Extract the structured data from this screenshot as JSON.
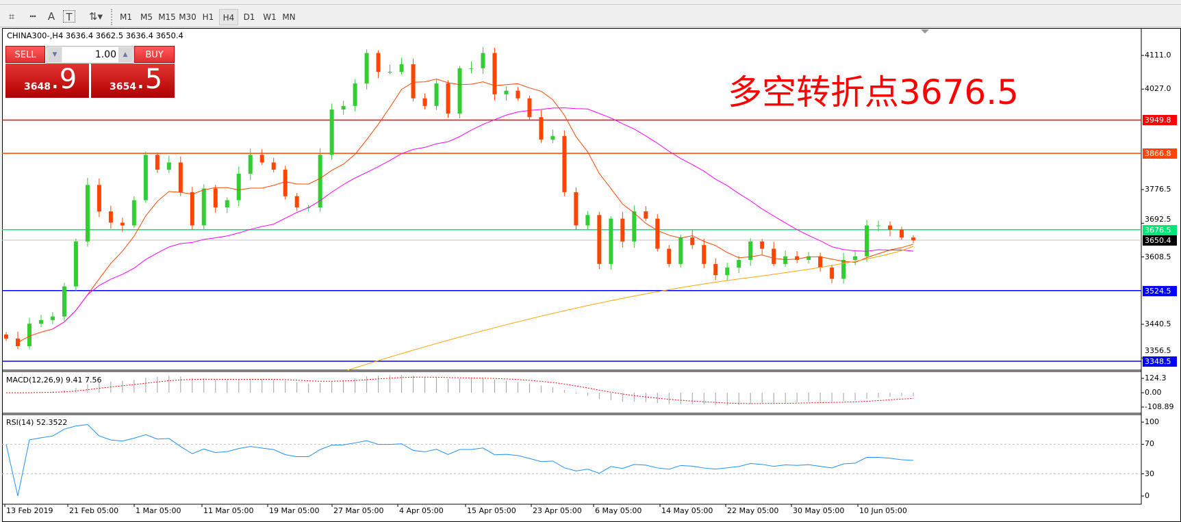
{
  "toolbar": {
    "icons": [
      "indicators-icon",
      "periodicity-separators-icon",
      "text-icon",
      "text-label-icon",
      "arrows-icon"
    ],
    "text_icon_label": "A",
    "label_icon_label": "T",
    "timeframes": [
      "M1",
      "M5",
      "M15",
      "M30",
      "H1",
      "H4",
      "D1",
      "W1",
      "MN"
    ],
    "active_timeframe": "H4"
  },
  "chart": {
    "info": "CHINA300-,H4  3636.4 3662.5 3636.4 3650.4",
    "annotation": "多空转折点3676.5",
    "trade": {
      "sell_label": "SELL",
      "buy_label": "BUY",
      "lot": "1.00",
      "sell_main": "3648",
      "sell_frac": ".9",
      "buy_main": "3654",
      "buy_frac": ".5"
    },
    "price_axis": [
      "4111.0",
      "4027.0",
      "3776.5",
      "3692.5",
      "3608.5",
      "3440.5",
      "3356.5"
    ],
    "hlines": [
      {
        "price": 3949.8,
        "label": "3949.8",
        "color": "#ff0000"
      },
      {
        "price": 3866.8,
        "label": "3866.8",
        "color": "#ff4500"
      },
      {
        "price": 3676.5,
        "label": "3676.5",
        "color": "#00e676"
      },
      {
        "price": 3650.4,
        "label": "3650.4",
        "color": "#c0c0c0",
        "label_bg": "#000000"
      },
      {
        "price": 3524.5,
        "label": "3524.5",
        "color": "#0000ff"
      },
      {
        "price": 3348.5,
        "label": "3348.5",
        "color": "#0000ff"
      }
    ],
    "colors": {
      "up": "#32cd32",
      "down": "#ff4500",
      "ma_fast": "#ff4500",
      "ma_slow": "#ff00ff",
      "ma_long": "#ffa500"
    },
    "closes": [
      3405,
      3386,
      3442,
      3451,
      3460,
      3535,
      3647,
      3788,
      3722,
      3694,
      3687,
      3750,
      3863,
      3826,
      3844,
      3770,
      3687,
      3779,
      3732,
      3750,
      3816,
      3863,
      3844,
      3826,
      3760,
      3732,
      3732,
      3863,
      3976,
      3985,
      4041,
      4117,
      4070,
      4070,
      4089,
      4004,
      3985,
      4041,
      3966,
      4079,
      4079,
      4117,
      4014,
      4023,
      4004,
      3957,
      3901,
      3910,
      3770,
      3687,
      3713,
      3591,
      3704,
      3647,
      3722,
      3704,
      3629,
      3591,
      3657,
      3638,
      3591,
      3563,
      3582,
      3601,
      3647,
      3629,
      3591,
      3610,
      3601,
      3610,
      3582,
      3554,
      3601,
      3610,
      3687,
      3687,
      3676,
      3657,
      3650
    ],
    "dates": [
      "13 Feb 2019",
      "21 Feb 05:00",
      "1 Mar 05:00",
      "11 Mar 05:00",
      "19 Mar 05:00",
      "27 Mar 05:00",
      "4 Apr 05:00",
      "15 Apr 05:00",
      "23 Apr 05:00",
      "6 May 05:00",
      "14 May 05:00",
      "22 May 05:00",
      "30 May 05:00",
      "10 Jun 05:00"
    ]
  },
  "macd": {
    "label": "MACD(12,26,9) 9.41 7.56",
    "axis": [
      "124.3",
      "0.00",
      "-108.89"
    ]
  },
  "rsi": {
    "label": "RSI(14) 52.3522",
    "axis": [
      "100",
      "70",
      "30",
      "0"
    ]
  }
}
